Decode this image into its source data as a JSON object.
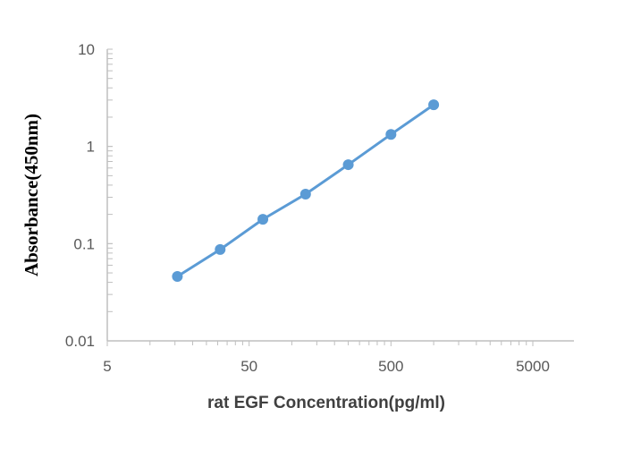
{
  "chart_data": {
    "type": "line",
    "title": "",
    "xlabel": "rat EGF Concentration(pg/ml)",
    "ylabel": "Absorbance(450nm)",
    "xscale": "log",
    "yscale": "log",
    "xlim": [
      5,
      5000
    ],
    "ylim": [
      0.01,
      10
    ],
    "xticks": [
      "5",
      "50",
      "500",
      "5000"
    ],
    "yticks": [
      "0.01",
      "0.1",
      "1",
      "10"
    ],
    "grid": false,
    "legend": "none",
    "series": [
      {
        "x": [
          15.6,
          31.25,
          62.5,
          125,
          250,
          500,
          1000
        ],
        "y": [
          0.046,
          0.087,
          0.178,
          0.323,
          0.649,
          1.33,
          2.68
        ],
        "color": "#5B9BD5",
        "markers": true
      }
    ]
  }
}
